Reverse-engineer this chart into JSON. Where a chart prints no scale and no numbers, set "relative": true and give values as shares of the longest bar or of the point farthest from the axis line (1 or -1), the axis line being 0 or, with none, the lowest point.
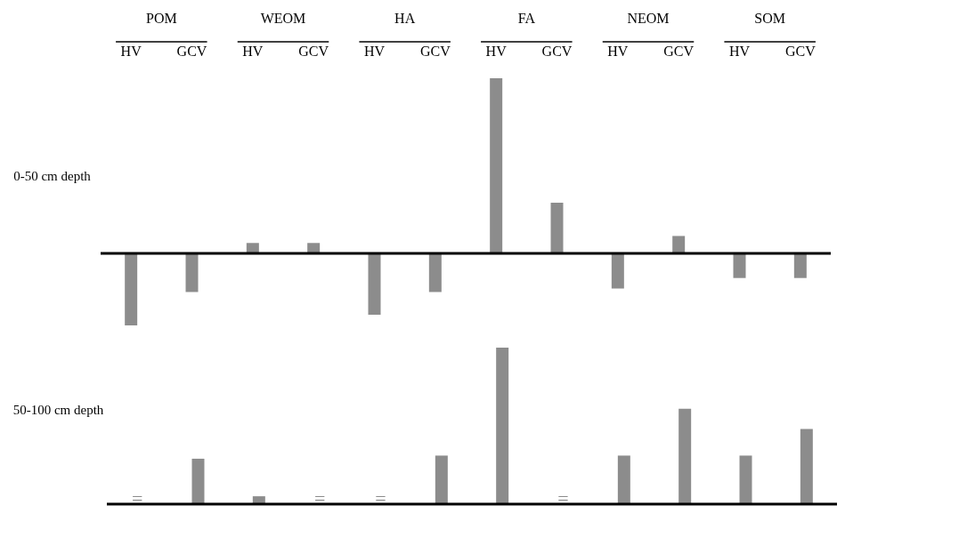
{
  "chart_data": [
    {
      "type": "bar",
      "relative": true,
      "ylabel": "0-50 cm depth",
      "annotations": [
        "POM",
        "WEOM",
        "HA",
        "FA",
        "NEOM",
        "SOM"
      ],
      "categories": [
        "HV",
        "GCV",
        "HV",
        "GCV",
        "HV",
        "GCV",
        "HV",
        "GCV",
        "HV",
        "GCV",
        "HV",
        "GCV"
      ],
      "color": "#8c8c8c",
      "tick_labels": "x",
      "values": [
        -0.41,
        -0.22,
        0.06,
        0.06,
        -0.35,
        -0.22,
        1,
        0.29,
        -0.2,
        0.1,
        -0.14,
        -0.14
      ]
    },
    {
      "type": "bar",
      "relative": true,
      "ylabel": "50-100 cm depth",
      "categories": [
        null,
        null,
        null,
        null,
        null,
        null,
        null,
        null,
        null,
        null,
        null,
        null
      ],
      "color": "#8c8c8c",
      "tick_labels": false,
      "values": [
        0,
        0.29,
        0.05,
        0,
        0,
        0.31,
        1,
        0,
        0.31,
        0.61,
        0.31,
        0.48
      ],
      "annotations": [
        "=",
        "=",
        "=",
        "="
      ]
    }
  ]
}
